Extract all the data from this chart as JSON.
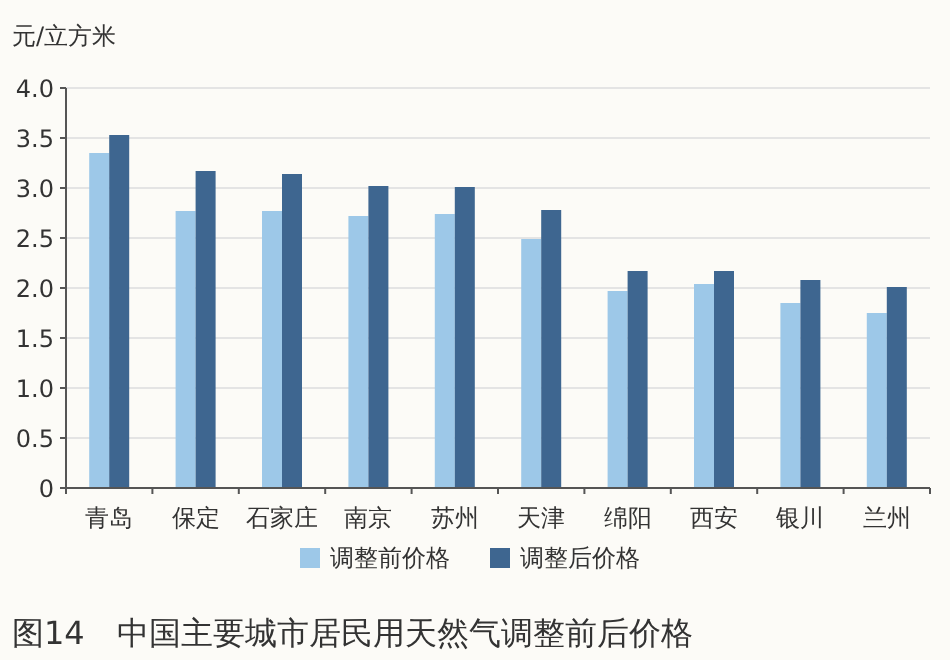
{
  "chart_data": {
    "type": "bar",
    "title": "图14　中国主要城市居民用天然气调整前后价格",
    "ylabel": "元/立方米",
    "categories": [
      "青岛",
      "保定",
      "石家庄",
      "南京",
      "苏州",
      "天津",
      "绵阳",
      "西安",
      "银川",
      "兰州"
    ],
    "series": [
      {
        "name": "调整前价格",
        "color": "#9dc8e8",
        "values": [
          3.35,
          2.77,
          2.77,
          2.72,
          2.74,
          2.49,
          1.97,
          2.04,
          1.85,
          1.75
        ]
      },
      {
        "name": "调整后价格",
        "color": "#3e6690",
        "values": [
          3.53,
          3.17,
          3.14,
          3.02,
          3.01,
          2.78,
          2.17,
          2.17,
          2.08,
          2.01
        ]
      }
    ],
    "ylim": [
      0,
      4
    ],
    "yticks": [
      0,
      0.5,
      {
        "value": 1,
        "label": "1.0"
      },
      1.5,
      {
        "value": 2,
        "label": "2.0"
      },
      2.5,
      {
        "value": 3,
        "label": "3.0"
      },
      3.5,
      {
        "value": 4,
        "label": "4.0"
      }
    ],
    "grid": "y",
    "legend": "bottom"
  }
}
